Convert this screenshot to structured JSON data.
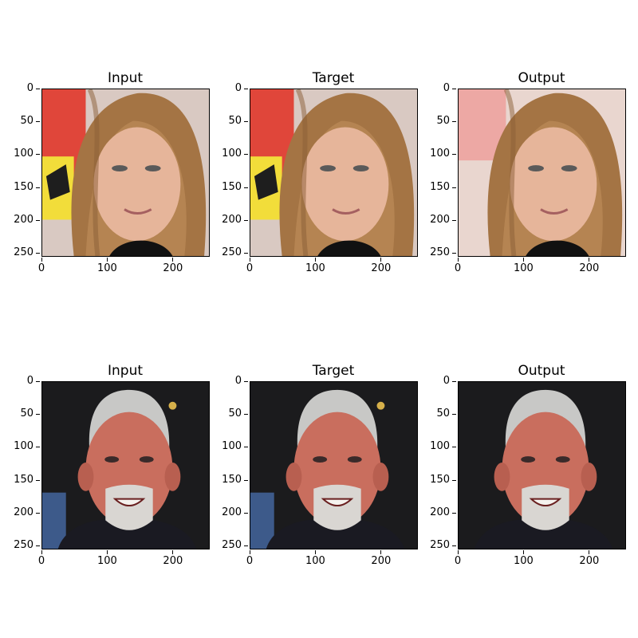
{
  "panels": [
    {
      "title": "Input",
      "variant": "woman-input"
    },
    {
      "title": "Target",
      "variant": "woman-target"
    },
    {
      "title": "Output",
      "variant": "woman-output"
    },
    {
      "title": "Input",
      "variant": "man-input"
    },
    {
      "title": "Target",
      "variant": "man-target"
    },
    {
      "title": "Output",
      "variant": "man-output"
    }
  ],
  "axis": {
    "yticks": [
      "0",
      "50",
      "100",
      "150",
      "200",
      "250"
    ],
    "xticks": [
      "0",
      "100",
      "200"
    ]
  },
  "colors": {
    "woman_bg_red": "#e0463a",
    "woman_hair": "#a47444",
    "woman_skin": "#e6b59a",
    "man_bg": "#1b1b1d",
    "man_hair": "#c8c8c6",
    "man_skin": "#c96e5e"
  }
}
